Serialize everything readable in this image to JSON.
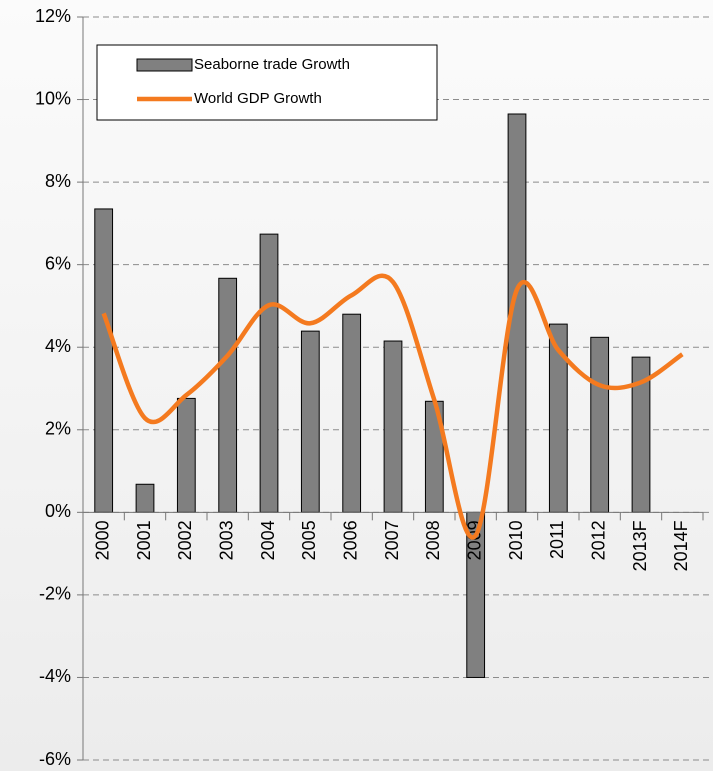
{
  "chart_data": {
    "type": "bar+line",
    "categories": [
      "2000",
      "2001",
      "2002",
      "2003",
      "2004",
      "2005",
      "2006",
      "2007",
      "2008",
      "2009",
      "2010",
      "2011",
      "2012",
      "2013F",
      "2014F"
    ],
    "series": [
      {
        "name": "Seaborne trade Growth",
        "type": "bar",
        "color": "#808080",
        "values": [
          7.35,
          0.68,
          2.76,
          5.67,
          6.74,
          4.39,
          4.8,
          4.15,
          2.69,
          -4.0,
          9.65,
          4.56,
          4.24,
          3.76,
          null
        ]
      },
      {
        "name": "World GDP Growth",
        "type": "line",
        "color": "#f47a1f",
        "values": [
          4.82,
          2.28,
          2.84,
          3.8,
          5.02,
          4.58,
          5.26,
          5.58,
          2.72,
          -0.56,
          5.4,
          3.93,
          3.08,
          3.15,
          3.83
        ]
      }
    ],
    "ylim": [
      -6,
      12
    ],
    "yticks": [
      {
        "value": -6,
        "label": "-6%"
      },
      {
        "value": -4,
        "label": "-4%"
      },
      {
        "value": -2,
        "label": "-2%"
      },
      {
        "value": 0,
        "label": "0%"
      },
      {
        "value": 2,
        "label": "2%"
      },
      {
        "value": 4,
        "label": "4%"
      },
      {
        "value": 6,
        "label": "6%"
      },
      {
        "value": 8,
        "label": "8%"
      },
      {
        "value": 10,
        "label": "10%"
      },
      {
        "value": 12,
        "label": "12%"
      }
    ],
    "grid": true,
    "legend": "top-left"
  }
}
